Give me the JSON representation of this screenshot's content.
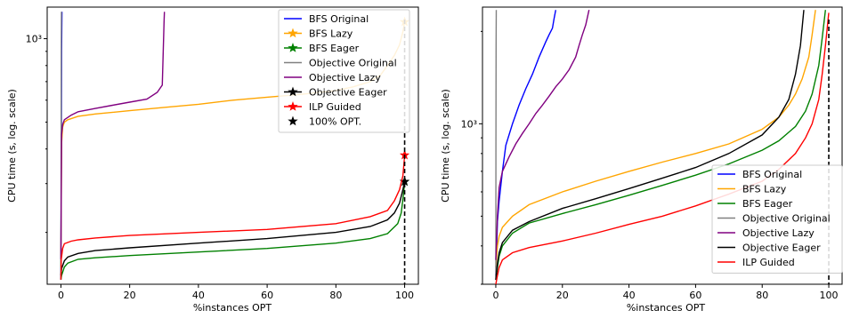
{
  "chart_data": [
    {
      "type": "line",
      "xlabel": "%instances OPT",
      "ylabel": "CPU time (s, log. scale)",
      "yscale": "log",
      "xlim": [
        -4,
        104
      ],
      "ylim": [
        130,
        1300
      ],
      "xticks": [
        0,
        20,
        40,
        60,
        80,
        100
      ],
      "xtick_labels": [
        "0",
        "20",
        "40",
        "60",
        "80",
        "100"
      ],
      "ytick_major_label": "10³",
      "legend_position": "top-right",
      "legend_entries": [
        "BFS Original",
        "BFS Lazy",
        "BFS Eager",
        "Objective Original",
        "Objective Lazy",
        "Objective Eager",
        "ILP Guided",
        "100% OPT."
      ],
      "vline_x": 100,
      "series": [
        {
          "name": "BFS Original",
          "color": "#0000ff",
          "marker": "none",
          "x": [
            0,
            0.1,
            0.2,
            0.3
          ],
          "y": [
            135,
            300,
            900,
            1250
          ]
        },
        {
          "name": "BFS Lazy",
          "color": "#ffa500",
          "marker": "star",
          "x": [
            0,
            0.2,
            0.5,
            1,
            2,
            5,
            10,
            20,
            30,
            40,
            50,
            60,
            70,
            80,
            85,
            90,
            93,
            95,
            97,
            98.5,
            99.5,
            100
          ],
          "y": [
            150,
            420,
            480,
            500,
            510,
            525,
            535,
            550,
            565,
            580,
            600,
            615,
            630,
            650,
            670,
            700,
            740,
            800,
            870,
            950,
            1060,
            1150
          ]
        },
        {
          "name": "BFS Eager",
          "color": "#008000",
          "marker": "star",
          "x": [
            0,
            0.2,
            1,
            2,
            5,
            10,
            20,
            40,
            60,
            80,
            90,
            95,
            98,
            99,
            99.6,
            100
          ],
          "y": [
            135,
            140,
            150,
            155,
            160,
            162,
            165,
            170,
            175,
            183,
            190,
            198,
            215,
            235,
            270,
            305
          ]
        },
        {
          "name": "Objective Original",
          "color": "#808080",
          "marker": "none",
          "x": [
            0,
            0.05,
            0.1,
            0.15
          ],
          "y": [
            135,
            300,
            900,
            1250
          ]
        },
        {
          "name": "Objective Lazy",
          "color": "#800080",
          "marker": "none",
          "x": [
            0,
            0.2,
            0.5,
            1,
            3,
            5,
            10,
            15,
            20,
            25,
            28,
            29.5,
            30,
            30.1
          ],
          "y": [
            160,
            450,
            490,
            510,
            530,
            545,
            560,
            575,
            590,
            605,
            640,
            680,
            1150,
            1250
          ]
        },
        {
          "name": "Objective Eager",
          "color": "#000000",
          "marker": "star",
          "x": [
            0,
            0.2,
            1,
            2,
            5,
            10,
            20,
            40,
            60,
            80,
            90,
            95,
            97,
            98.5,
            99.5,
            100
          ],
          "y": [
            140,
            148,
            158,
            163,
            168,
            172,
            176,
            183,
            190,
            200,
            210,
            222,
            235,
            255,
            285,
            305
          ]
        },
        {
          "name": "ILP Guided",
          "color": "#ff0000",
          "marker": "star",
          "x": [
            0,
            0.1,
            0.5,
            1,
            3,
            5,
            10,
            20,
            40,
            60,
            80,
            90,
            95,
            97,
            98.5,
            99.5,
            100
          ],
          "y": [
            135,
            160,
            175,
            182,
            186,
            188,
            191,
            195,
            200,
            205,
            215,
            228,
            240,
            260,
            285,
            320,
            380
          ]
        }
      ]
    },
    {
      "type": "line",
      "xlabel": "%instances OPT",
      "ylabel": "CPU time (s, log. scale)",
      "yscale": "log",
      "xlim": [
        -4,
        104
      ],
      "ylim": [
        300,
        2400
      ],
      "xticks": [
        0,
        20,
        40,
        60,
        80,
        100
      ],
      "xtick_labels": [
        "0",
        "20",
        "40",
        "60",
        "80",
        "100"
      ],
      "ytick_major_label": "10³",
      "legend_position": "bottom-right",
      "legend_entries": [
        "BFS Original",
        "BFS Lazy",
        "BFS Eager",
        "Objective Original",
        "Objective Lazy",
        "Objective Eager",
        "ILP Guided"
      ],
      "vline_x": 100,
      "series": [
        {
          "name": "BFS Original",
          "color": "#0000ff",
          "x": [
            0,
            0.5,
            1,
            2,
            3,
            5,
            7,
            9,
            11,
            13,
            15,
            16,
            17,
            17.5,
            18
          ],
          "y": [
            320,
            480,
            560,
            700,
            850,
            1000,
            1150,
            1300,
            1450,
            1650,
            1850,
            1950,
            2050,
            2200,
            2350
          ]
        },
        {
          "name": "BFS Lazy",
          "color": "#ffa500",
          "x": [
            0,
            0.5,
            1,
            2,
            5,
            10,
            20,
            30,
            40,
            50,
            60,
            70,
            80,
            85,
            88,
            90,
            92,
            94,
            95,
            96
          ],
          "y": [
            340,
            400,
            430,
            460,
            500,
            545,
            600,
            650,
            700,
            750,
            800,
            860,
            960,
            1050,
            1150,
            1250,
            1400,
            1650,
            1950,
            2350
          ]
        },
        {
          "name": "BFS Eager",
          "color": "#008000",
          "x": [
            0,
            0.5,
            1,
            2,
            5,
            10,
            20,
            30,
            40,
            50,
            60,
            70,
            80,
            85,
            90,
            93,
            95,
            97,
            98,
            99
          ],
          "y": [
            310,
            340,
            370,
            400,
            440,
            475,
            510,
            545,
            585,
            630,
            680,
            740,
            820,
            880,
            980,
            1100,
            1250,
            1550,
            1900,
            2350
          ]
        },
        {
          "name": "Objective Original",
          "color": "#808080",
          "x": [
            0,
            0.05,
            0.1,
            0.15
          ],
          "y": [
            310,
            800,
            1800,
            2350
          ]
        },
        {
          "name": "Objective Lazy",
          "color": "#800080",
          "x": [
            0,
            0.5,
            1,
            2,
            4,
            6,
            8,
            10,
            12,
            14,
            16,
            18,
            20,
            22,
            24,
            25,
            26,
            27,
            28
          ],
          "y": [
            360,
            500,
            620,
            700,
            780,
            860,
            930,
            1000,
            1080,
            1150,
            1230,
            1320,
            1400,
            1500,
            1650,
            1800,
            1950,
            2100,
            2350
          ]
        },
        {
          "name": "Objective Eager",
          "color": "#000000",
          "x": [
            0,
            0.5,
            1,
            2,
            5,
            10,
            20,
            30,
            40,
            50,
            60,
            70,
            80,
            85,
            88,
            90,
            91.5,
            92.5
          ],
          "y": [
            310,
            350,
            380,
            410,
            450,
            480,
            530,
            570,
            615,
            665,
            720,
            800,
            920,
            1050,
            1200,
            1450,
            1800,
            2350
          ]
        },
        {
          "name": "ILP Guided",
          "color": "#ff0000",
          "x": [
            0,
            0.5,
            1,
            2,
            5,
            10,
            20,
            30,
            40,
            50,
            60,
            70,
            80,
            85,
            90,
            93,
            95,
            97,
            98,
            99,
            100
          ],
          "y": [
            300,
            320,
            340,
            360,
            380,
            395,
            415,
            440,
            470,
            500,
            540,
            590,
            650,
            710,
            800,
            900,
            1000,
            1200,
            1450,
            1800,
            2300
          ]
        }
      ]
    }
  ]
}
